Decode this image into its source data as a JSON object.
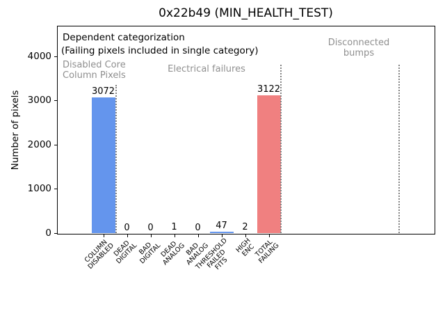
{
  "colors": {
    "bar_blue": "#6495ED",
    "bar_red": "#F08080",
    "annotation_gray": "#8f8f8f",
    "separator_gray": "#848484"
  },
  "chart_data": {
    "type": "bar",
    "title": "0x22b49 (MIN_HEALTH_TEST)",
    "xlabel": "",
    "ylabel": "Number of pixels",
    "categories": [
      "COLUMN\nDISABLED",
      "DEAD\nDIGITAL",
      "BAD\nDIGITAL",
      "DEAD\nANALOG",
      "BAD\nANALOG",
      "THRESHOLD\nFAILED\nFITS",
      "HIGH\nENC",
      "TOTAL\nFAILING"
    ],
    "values": [
      3072,
      0,
      0,
      1,
      0,
      47,
      2,
      3122
    ],
    "value_labels": [
      "3072",
      "0",
      "0",
      "1",
      "0",
      "47",
      "2",
      "3122"
    ],
    "bar_colors": [
      "#6495ED",
      "#6495ED",
      "#6495ED",
      "#6495ED",
      "#6495ED",
      "#6495ED",
      "#6495ED",
      "#F08080"
    ],
    "yticks": [
      0,
      1000,
      2000,
      3000,
      4000
    ],
    "ylim": [
      0,
      4690
    ],
    "xlim": [
      -1.9,
      14.0
    ],
    "grid": false,
    "legend": null,
    "separators": [
      {
        "x": 0.53,
        "ymax": 3350
      },
      {
        "x": 7.5,
        "ymax": 3810
      },
      {
        "x": 12.5,
        "ymax": 3810
      }
    ],
    "annotations": {
      "dependent_categorization": "Dependent categorization",
      "failing_note": "(Failing pixels included in single category)",
      "region_labels": [
        {
          "text": "Disabled Core\nColumn Pixels",
          "color": "#8f8f8f"
        },
        {
          "text": "Electrical failures",
          "color": "#8f8f8f"
        },
        {
          "text": "Disconnected\nbumps",
          "color": "#8f8f8f"
        }
      ]
    }
  }
}
